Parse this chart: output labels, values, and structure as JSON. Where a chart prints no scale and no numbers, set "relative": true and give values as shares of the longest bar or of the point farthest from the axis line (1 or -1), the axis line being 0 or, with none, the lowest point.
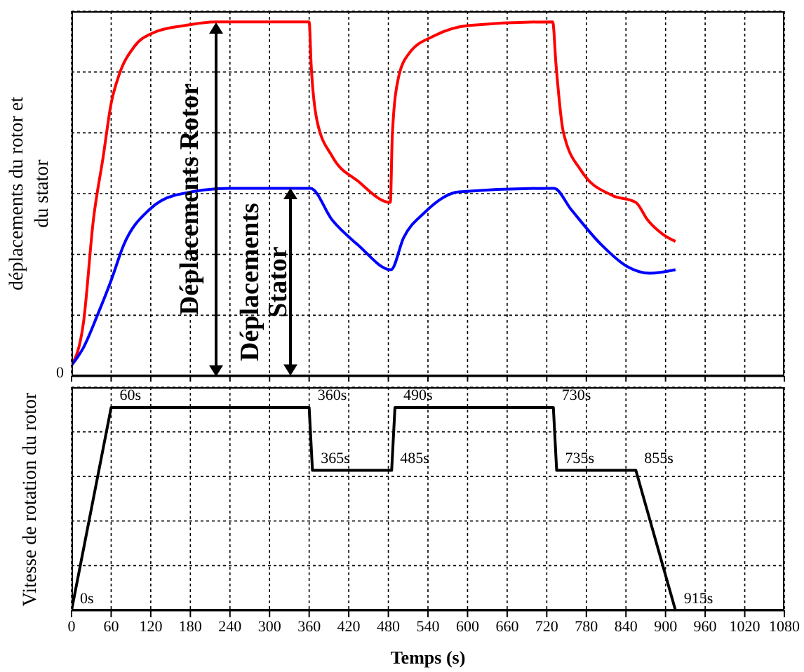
{
  "chart_data": [
    {
      "type": "line",
      "relative": true,
      "ylabel": "déplacements du rotor et du stator",
      "xlim": [
        0,
        1080
      ],
      "xticks": [
        0,
        60,
        120,
        180,
        240,
        300,
        360,
        420,
        480,
        540,
        600,
        660,
        720,
        780,
        840,
        900,
        960,
        1020,
        1080
      ],
      "tick_labels": false,
      "grid": true,
      "marker": "none",
      "line_style": "solid",
      "annotations": [
        "0",
        {
          "text": "Déplacements Rotor",
          "x": 218,
          "y": 1.0
        },
        {
          "text": "Déplacements Stator",
          "x": 332,
          "y": 0.53
        }
      ],
      "series": [
        {
          "color": "#ff0000",
          "x": [
            0,
            18,
            33,
            48,
            60,
            72,
            95,
            125,
            172,
            218,
            360,
            363,
            372,
            395,
            434,
            483,
            486,
            495,
            511,
            549,
            603,
            729,
            734,
            745,
            772,
            819,
            855,
            873,
            896,
            915
          ],
          "values": [
            0.03,
            0.15,
            0.44,
            0.62,
            0.77,
            0.85,
            0.93,
            0.97,
            0.99,
            1.0,
            1.0,
            0.88,
            0.72,
            0.62,
            0.55,
            0.49,
            0.68,
            0.84,
            0.91,
            0.96,
            0.99,
            1.0,
            0.88,
            0.69,
            0.58,
            0.51,
            0.49,
            0.44,
            0.4,
            0.38
          ]
        },
        {
          "color": "#0000ff",
          "x": [
            0,
            18,
            41,
            60,
            79,
            118,
            156,
            240,
            362,
            395,
            434,
            484,
            503,
            534,
            587,
            731,
            757,
            803,
            841,
            876,
            915
          ],
          "values": [
            0.03,
            0.08,
            0.18,
            0.27,
            0.37,
            0.47,
            0.51,
            0.53,
            0.53,
            0.44,
            0.37,
            0.3,
            0.39,
            0.46,
            0.52,
            0.53,
            0.47,
            0.37,
            0.31,
            0.29,
            0.3
          ]
        }
      ]
    },
    {
      "type": "line",
      "relative": true,
      "xlabel": "Temps (s)",
      "ylabel": "Vitesse de rotation du rotor",
      "xlim": [
        0,
        1080
      ],
      "xticks": [
        0,
        60,
        120,
        180,
        240,
        300,
        360,
        420,
        480,
        540,
        600,
        660,
        720,
        780,
        840,
        900,
        960,
        1020,
        1080
      ],
      "tick_labels": "x",
      "grid": true,
      "marker": "none",
      "line_style": "solid",
      "series": [
        {
          "color": "#000000",
          "x": [
            0,
            60,
            360,
            365,
            485,
            490,
            730,
            735,
            855,
            915
          ],
          "values": [
            0,
            1,
            1,
            0.69,
            0.69,
            1,
            1,
            0.69,
            0.69,
            0
          ]
        }
      ],
      "annotations": [
        {
          "text": "0s",
          "x": 0,
          "y": 0
        },
        {
          "text": "60s",
          "x": 60,
          "y": 1
        },
        {
          "text": "360s",
          "x": 360,
          "y": 1
        },
        {
          "text": "365s",
          "x": 365,
          "y": 0.69
        },
        {
          "text": "485s",
          "x": 485,
          "y": 0.69
        },
        {
          "text": "490s",
          "x": 490,
          "y": 1
        },
        {
          "text": "730s",
          "x": 730,
          "y": 1
        },
        {
          "text": "735s",
          "x": 735,
          "y": 0.69
        },
        {
          "text": "855s",
          "x": 855,
          "y": 0.69
        },
        {
          "text": "915s",
          "x": 915,
          "y": 0
        }
      ]
    }
  ]
}
